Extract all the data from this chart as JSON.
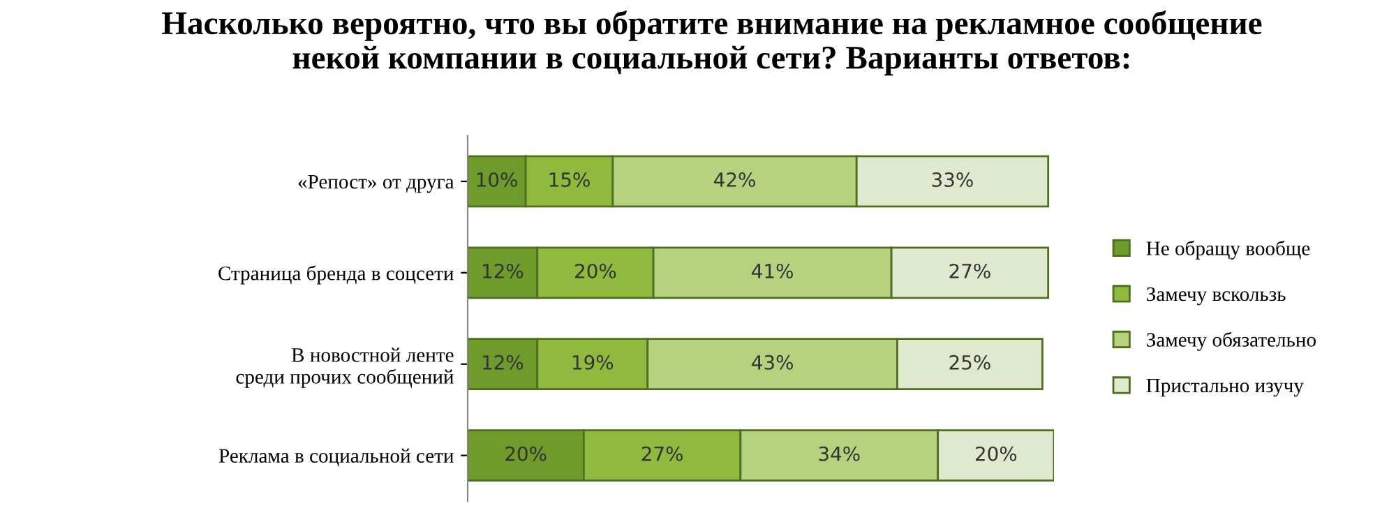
{
  "chart_data": {
    "type": "bar",
    "orientation": "horizontal",
    "stacked": true,
    "legend": "right",
    "tick_labels": "y",
    "grid": false,
    "title": "Насколько вероятно, что вы обратите внимание на рекламное сообщение\nнекой компании в социальной сети? Варианты ответов:",
    "categories": [
      "«Репост» от друга",
      "Страница бренда в соцсети",
      "В новостной ленте\nсреди прочих сообщений",
      "Реклама в социальной сети"
    ],
    "series": [
      {
        "name": "Не обращу вообще",
        "color": "#6f9a2c",
        "values": [
          10,
          12,
          12,
          20
        ],
        "value_labels": [
          "10%",
          "12%",
          "12%",
          "20%"
        ]
      },
      {
        "name": "Замечу вскользь",
        "color": "#8fba3e",
        "values": [
          15,
          20,
          19,
          27
        ],
        "value_labels": [
          "15%",
          "20%",
          "19%",
          "27%"
        ]
      },
      {
        "name": "Замечу обязательно",
        "color": "#b5d37e",
        "values": [
          42,
          41,
          43,
          34
        ],
        "value_labels": [
          "42%",
          "41%",
          "43%",
          "34%"
        ]
      },
      {
        "name": "Пристально изучу",
        "color": "#dfe9cd",
        "values": [
          33,
          27,
          25,
          20
        ],
        "value_labels": [
          "33%",
          "27%",
          "25%",
          "20%"
        ]
      }
    ]
  }
}
